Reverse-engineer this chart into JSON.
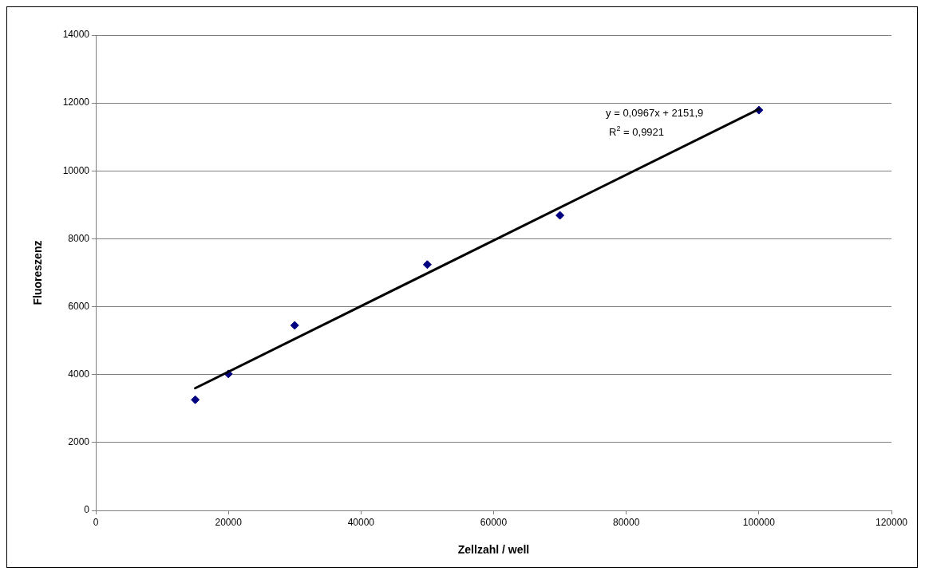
{
  "chart_data": {
    "type": "scatter",
    "xlabel": "Zellzahl / well",
    "ylabel": "Fluoreszenz",
    "x": [
      15000,
      20000,
      30000,
      50000,
      70000,
      100000
    ],
    "series": [
      {
        "type": "scatter",
        "color": "#000080",
        "marker": "diamond",
        "values": [
          3260,
          4020,
          5450,
          7240,
          8690,
          11790
        ]
      },
      {
        "type": "line",
        "color": "#000000",
        "marker": "none",
        "line_style": "solid",
        "x": [
          15000,
          100000
        ],
        "values": [
          3600,
          11820
        ]
      }
    ],
    "xlim": [
      0,
      120000
    ],
    "xticks": [
      0,
      20000,
      40000,
      60000,
      80000,
      100000,
      120000
    ],
    "ylim": [
      0,
      14000
    ],
    "yticks": [
      0,
      2000,
      4000,
      6000,
      8000,
      10000,
      12000,
      14000
    ],
    "grid": "y",
    "legend": false,
    "annotations": [
      "y = 0,0967x + 2151,9",
      "R$^{2}$ = 0,9921"
    ]
  }
}
